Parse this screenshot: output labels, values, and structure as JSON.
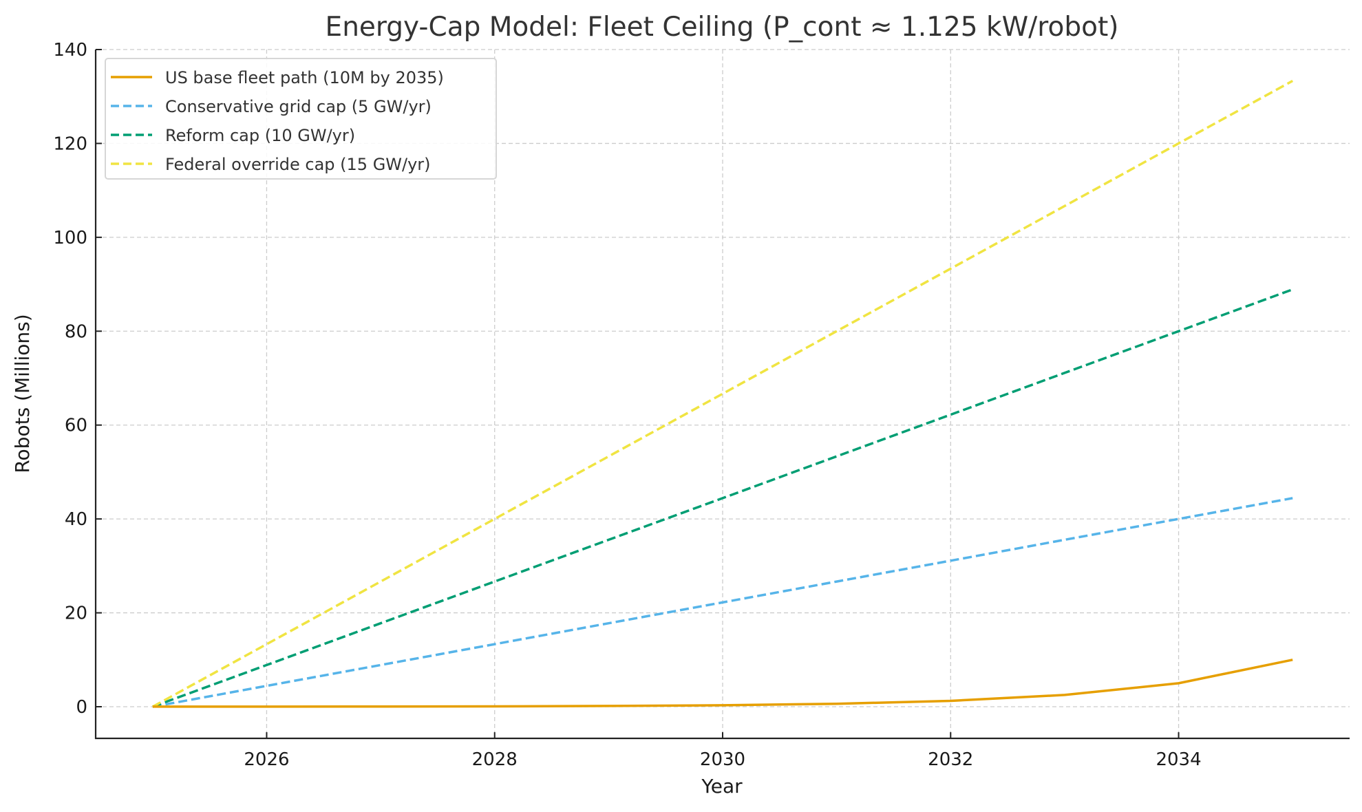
{
  "chart_data": {
    "type": "line",
    "title": "Energy-Cap Model: Fleet Ceiling (P_cont ≈ 1.125 kW/robot)",
    "xlabel": "Year",
    "ylabel": "Robots (Millions)",
    "xlim": [
      2024.5,
      2035.5
    ],
    "ylim": [
      -6.7,
      140
    ],
    "xticks": [
      2026,
      2028,
      2030,
      2032,
      2034
    ],
    "yticks": [
      0,
      20,
      40,
      60,
      80,
      100,
      120,
      140
    ],
    "grid": true,
    "legend_position": "top-left",
    "x": [
      2025,
      2026,
      2027,
      2028,
      2029,
      2030,
      2031,
      2032,
      2033,
      2034,
      2035
    ],
    "series": [
      {
        "name": "US base fleet path (10M by 2035)",
        "color": "#E69F00",
        "style": "solid",
        "values": [
          0.01,
          0.02,
          0.04,
          0.08,
          0.16,
          0.31,
          0.63,
          1.25,
          2.5,
          5,
          10
        ]
      },
      {
        "name": "Conservative grid cap (5 GW/yr)",
        "color": "#56B4E9",
        "style": "dashed",
        "values": [
          0,
          4.44,
          8.89,
          13.33,
          17.78,
          22.22,
          26.67,
          31.11,
          35.56,
          40,
          44.44
        ]
      },
      {
        "name": "Reform cap (10 GW/yr)",
        "color": "#009E73",
        "style": "dashed",
        "values": [
          0,
          8.89,
          17.78,
          26.67,
          35.56,
          44.44,
          53.33,
          62.22,
          71.11,
          80,
          88.89
        ]
      },
      {
        "name": "Federal override cap (15 GW/yr)",
        "color": "#F0E442",
        "style": "dashed",
        "values": [
          0,
          13.33,
          26.67,
          40,
          53.33,
          66.67,
          80,
          93.33,
          106.67,
          120,
          133.33
        ]
      }
    ]
  }
}
